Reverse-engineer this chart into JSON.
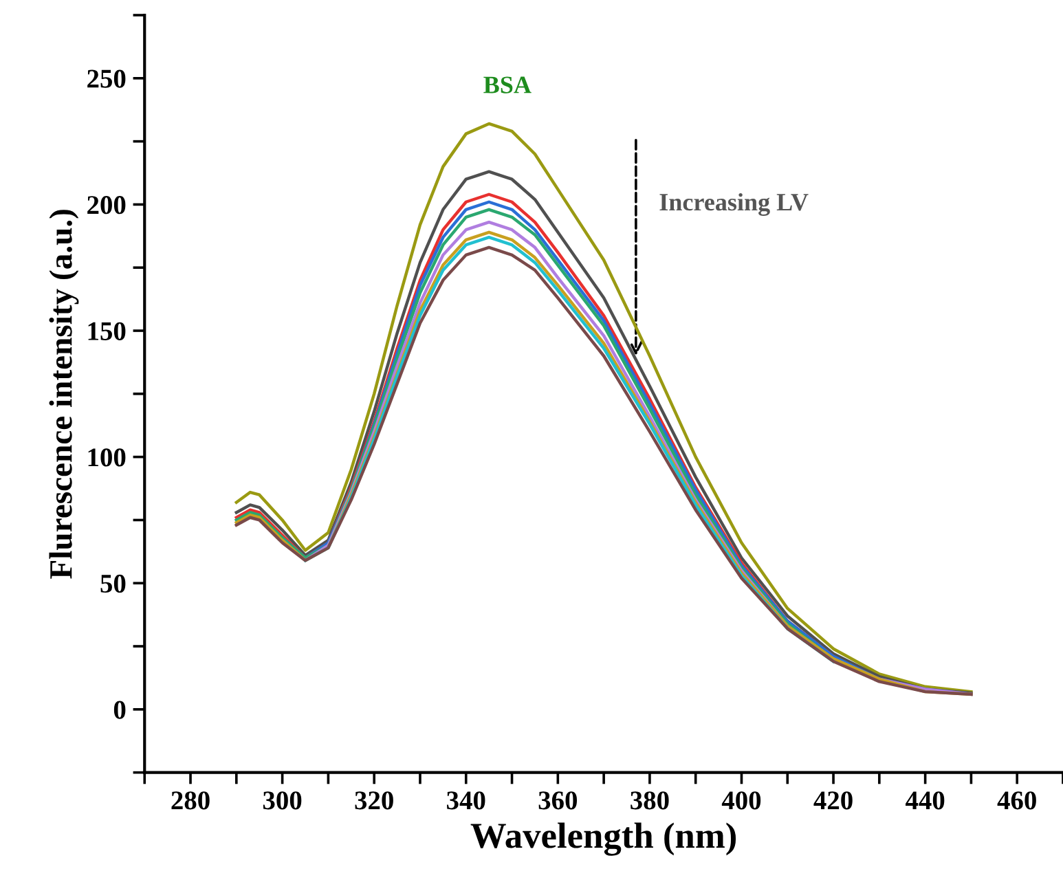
{
  "chart_data": {
    "type": "line",
    "xlabel": "Wavelength (nm)",
    "ylabel": "Flurescence intensity (a.u.)",
    "x": [
      290,
      293,
      295,
      300,
      305,
      310,
      315,
      320,
      325,
      330,
      335,
      340,
      345,
      350,
      355,
      360,
      370,
      380,
      390,
      400,
      410,
      420,
      430,
      440,
      450
    ],
    "series": [
      {
        "color": "#9a9a12",
        "values": [
          82,
          86,
          85,
          75,
          63,
          70,
          95,
          125,
          160,
          192,
          215,
          228,
          232,
          229,
          220,
          206,
          178,
          140,
          100,
          66,
          40,
          24,
          14,
          9,
          7
        ]
      },
      {
        "color": "#505050",
        "values": [
          78,
          81,
          80,
          71,
          61,
          67,
          90,
          118,
          149,
          177,
          198,
          210,
          213,
          210,
          202,
          189,
          163,
          128,
          92,
          60,
          37,
          22,
          13,
          8,
          6.5
        ]
      },
      {
        "color": "#e8312f",
        "values": [
          76,
          79,
          78,
          69,
          60,
          66,
          88,
          114,
          143,
          170,
          190,
          201,
          204,
          201,
          193,
          181,
          156,
          123,
          88,
          58,
          35,
          21,
          null,
          null,
          null
        ]
      },
      {
        "color": "#2a6fd6",
        "values": [
          null,
          null,
          null,
          68,
          60,
          66,
          87,
          113,
          141,
          168,
          187,
          198,
          201,
          198,
          190,
          178,
          154,
          121,
          87,
          57,
          35,
          21,
          12,
          8,
          6
        ]
      },
      {
        "color": "#2aa870",
        "values": [
          75,
          78,
          77,
          68,
          60,
          65,
          87,
          112,
          139,
          165,
          184,
          195,
          198,
          195,
          188,
          176,
          152,
          119,
          85,
          56,
          34,
          20,
          12,
          null,
          null
        ]
      },
      {
        "color": "#b07ee0",
        "values": [
          null,
          null,
          null,
          67,
          59,
          65,
          86,
          110,
          136,
          161,
          180,
          190,
          193,
          190,
          183,
          171,
          148,
          116,
          83,
          55,
          33,
          20,
          12,
          8,
          6
        ]
      },
      {
        "color": "#c8a020",
        "values": [
          74,
          77,
          76,
          67,
          59,
          64,
          85,
          108,
          133,
          158,
          176,
          186,
          189,
          186,
          179,
          168,
          145,
          114,
          82,
          54,
          33,
          20,
          12,
          7,
          6
        ]
      },
      {
        "color": "#22c0d0",
        "values": [
          null,
          null,
          null,
          null,
          59,
          64,
          84,
          107,
          132,
          156,
          174,
          184,
          187,
          184,
          177,
          166,
          143,
          113,
          81,
          53,
          32,
          19,
          null,
          null,
          null
        ]
      },
      {
        "color": "#7a4a4a",
        "values": [
          73,
          76,
          75,
          66,
          59,
          64,
          83,
          105,
          129,
          153,
          170,
          180,
          183,
          180,
          174,
          163,
          140,
          110,
          79,
          52,
          32,
          19,
          11,
          7,
          6
        ]
      }
    ],
    "xlim": [
      270,
      470
    ],
    "xticks": [
      {
        "value": 270,
        "label": null
      },
      280,
      {
        "value": 290,
        "label": null
      },
      300,
      {
        "value": 310,
        "label": null
      },
      320,
      {
        "value": 330,
        "label": null
      },
      340,
      {
        "value": 350,
        "label": null
      },
      360,
      {
        "value": 370,
        "label": null
      },
      380,
      {
        "value": 390,
        "label": null
      },
      400,
      {
        "value": 410,
        "label": null
      },
      420,
      {
        "value": 430,
        "label": null
      },
      440,
      {
        "value": 450,
        "label": null
      },
      460,
      {
        "value": 470,
        "label": null
      }
    ],
    "ylim": [
      -25,
      275
    ],
    "yticks": [
      {
        "value": -25,
        "label": null
      },
      0,
      {
        "value": 25,
        "label": null
      },
      50,
      {
        "value": 75,
        "label": null
      },
      100,
      {
        "value": 125,
        "label": null
      },
      150,
      {
        "value": 175,
        "label": null
      },
      200,
      {
        "value": 225,
        "label": null
      },
      250,
      {
        "value": 275,
        "label": null
      }
    ],
    "annotations": [
      "BSA",
      "Increasing LV"
    ],
    "grid": false,
    "legend": false,
    "marker": "none",
    "line_style": "solid"
  }
}
